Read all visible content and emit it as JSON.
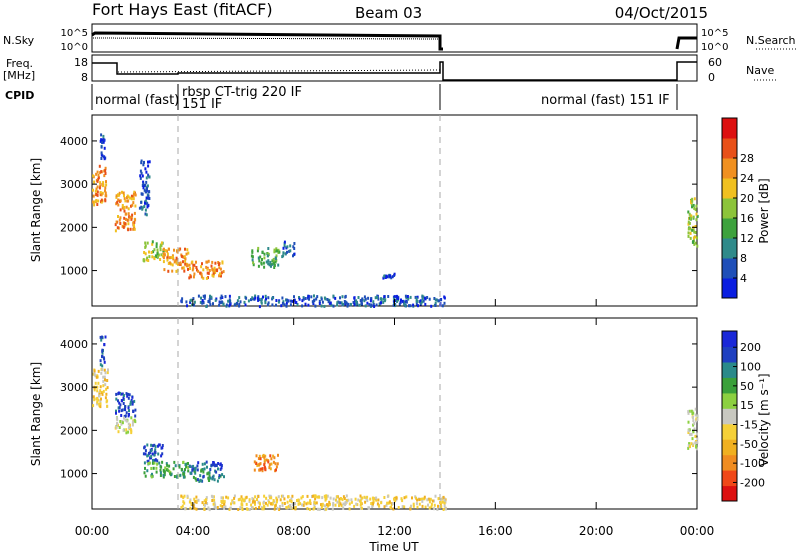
{
  "header": {
    "station": "Fort Hays East (fitACF)",
    "beam": "Beam 03",
    "date": "04/Oct/2015"
  },
  "top_panels": {
    "nsky_label": "N.Sky",
    "nsearch_label": "N.Search",
    "nsky_ticks": [
      "10^5",
      "10^0"
    ],
    "nsearch_ticks": [
      "10^5",
      "10^0"
    ],
    "freq_label": "Freq.",
    "freq_unit": "[MHz]",
    "freq_ticks": [
      "18",
      "8"
    ],
    "nave_label": "Nave",
    "nave_ticks": [
      "60",
      "0"
    ],
    "cpid_label": "CPID",
    "cpid_segments": [
      {
        "text": "normal (fast)",
        "start": 0.0,
        "end": 3.5
      },
      {
        "text": "rbsp CT-trig 220 IF",
        "start": 3.5,
        "end": 14.0
      },
      {
        "text": "151 IF",
        "start": 3.5,
        "end": 14.0
      },
      {
        "text": "normal (fast) 151 IF",
        "start": 14.0,
        "end": 24.0
      }
    ]
  },
  "colorbars": {
    "power": {
      "label": "Power [dB]",
      "ticks": [
        "4",
        "8",
        "12",
        "16",
        "20",
        "24",
        "28"
      ],
      "colors": [
        "#0a1ee0",
        "#1f4fb8",
        "#2f8a8a",
        "#3da23d",
        "#8cc43a",
        "#f0c020",
        "#f09020",
        "#e85018",
        "#dd1010"
      ]
    },
    "velocity": {
      "label": "Velocity [m s⁻¹]",
      "ticks": [
        "-200",
        "-100",
        "-50",
        "-15",
        "15",
        "50",
        "100",
        "200"
      ],
      "colors": [
        "#dd1010",
        "#f04818",
        "#f08c20",
        "#f0b020",
        "#f5d038",
        "#c8c8c0",
        "#8cd040",
        "#3aa03a",
        "#2a8a8a",
        "#1f40c0",
        "#1a28d8"
      ]
    }
  },
  "chart_data": [
    {
      "type": "heatmap",
      "title": "Power",
      "ylabel": "Slant Range [km]",
      "xlabel": "Time UT",
      "ylim": [
        180,
        4600
      ],
      "xlim": [
        0,
        24
      ],
      "yticks": [
        "1000",
        "2000",
        "3000",
        "4000"
      ],
      "xticks": [
        "00:00",
        "04:00",
        "08:00",
        "12:00",
        "16:00",
        "20:00",
        "00:00"
      ],
      "colorbar": "power",
      "blobs": [
        {
          "t0": 0.0,
          "t1": 0.55,
          "r0": 2550,
          "r1": 3450,
          "level": 6
        },
        {
          "t0": 0.9,
          "t1": 1.7,
          "r0": 1950,
          "r1": 2850,
          "level": 6
        },
        {
          "t0": 1.85,
          "t1": 2.25,
          "r0": 2300,
          "r1": 3600,
          "level": 1
        },
        {
          "t0": 2.0,
          "t1": 2.8,
          "r0": 1250,
          "r1": 1700,
          "level": 4
        },
        {
          "t0": 2.8,
          "t1": 3.8,
          "r0": 1000,
          "r1": 1550,
          "level": 6
        },
        {
          "t0": 3.8,
          "t1": 5.2,
          "r0": 850,
          "r1": 1250,
          "level": 6
        },
        {
          "t0": 6.3,
          "t1": 7.4,
          "r0": 1100,
          "r1": 1550,
          "level": 3
        },
        {
          "t0": 7.5,
          "t1": 8.0,
          "r0": 1350,
          "r1": 1700,
          "level": 1
        },
        {
          "t0": 0.3,
          "t1": 0.5,
          "r0": 3450,
          "r1": 4200,
          "level": 1
        },
        {
          "t0": 3.5,
          "t1": 14.0,
          "r0": 200,
          "r1": 450,
          "level": 1
        },
        {
          "t0": 11.5,
          "t1": 12.0,
          "r0": 850,
          "r1": 950,
          "level": 1
        },
        {
          "t0": 23.6,
          "t1": 24.0,
          "r0": 1600,
          "r1": 2700,
          "level": 4
        }
      ]
    },
    {
      "type": "heatmap",
      "title": "Velocity",
      "ylabel": "Slant Range [km]",
      "xlabel": "Time UT",
      "ylim": [
        180,
        4600
      ],
      "xlim": [
        0,
        24
      ],
      "yticks": [
        "1000",
        "2000",
        "3000",
        "4000"
      ],
      "xticks": [
        "00:00",
        "04:00",
        "08:00",
        "12:00",
        "16:00",
        "20:00",
        "00:00"
      ],
      "colorbar": "velocity",
      "blobs": [
        {
          "t0": 0.0,
          "t1": 0.6,
          "r0": 2550,
          "r1": 3450,
          "level": 4
        },
        {
          "t0": 0.9,
          "t1": 1.7,
          "r0": 2350,
          "r1": 2900,
          "level": 9
        },
        {
          "t0": 0.9,
          "t1": 1.7,
          "r0": 1950,
          "r1": 2350,
          "level": 5
        },
        {
          "t0": 2.0,
          "t1": 2.8,
          "r0": 1250,
          "r1": 1700,
          "level": 9
        },
        {
          "t0": 2.0,
          "t1": 3.8,
          "r0": 950,
          "r1": 1300,
          "level": 7
        },
        {
          "t0": 3.8,
          "t1": 5.2,
          "r0": 850,
          "r1": 1150,
          "level": 8
        },
        {
          "t0": 3.8,
          "t1": 5.2,
          "r0": 1150,
          "r1": 1300,
          "level": 9
        },
        {
          "t0": 6.4,
          "t1": 7.4,
          "r0": 1100,
          "r1": 1500,
          "level": 2
        },
        {
          "t0": 0.3,
          "t1": 0.5,
          "r0": 3450,
          "r1": 4200,
          "level": 9
        },
        {
          "t0": 3.5,
          "t1": 14.0,
          "r0": 200,
          "r1": 520,
          "level": 4
        },
        {
          "t0": 23.6,
          "t1": 24.0,
          "r0": 1600,
          "r1": 2600,
          "level": 5
        }
      ]
    }
  ]
}
